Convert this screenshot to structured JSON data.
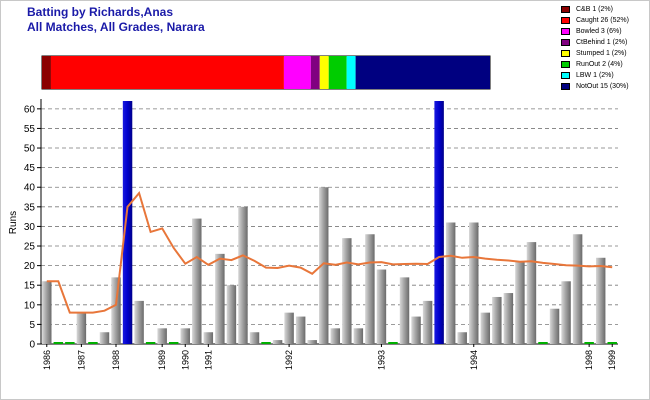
{
  "titles": {
    "line1": "Batting by Richards,Anas",
    "line2": "All Matches, All Grades, Narara"
  },
  "legend": [
    {
      "label": "C&B 1 (2%)",
      "color": "#8b0000"
    },
    {
      "label": "Caught 26 (52%)",
      "color": "#ff0000"
    },
    {
      "label": "Bowled 3 (6%)",
      "color": "#ff00ff"
    },
    {
      "label": "CtBehind 1 (2%)",
      "color": "#800080"
    },
    {
      "label": "Stumped 1 (2%)",
      "color": "#ffff00"
    },
    {
      "label": "RunOut 2 (4%)",
      "color": "#00cc00"
    },
    {
      "label": "LBW 1 (2%)",
      "color": "#00ffff"
    },
    {
      "label": "NotOut 15 (30%)",
      "color": "#000080"
    }
  ],
  "chart_data": {
    "type": "bar",
    "ylabel": "Runs",
    "ylim": [
      0,
      62
    ],
    "yticks": [
      0,
      5,
      10,
      15,
      20,
      25,
      30,
      35,
      40,
      45,
      50,
      55,
      60
    ],
    "grid": true,
    "dismissal_bar": {
      "segments": [
        {
          "name": "C&B",
          "count": 1
        },
        {
          "name": "Caught",
          "count": 26
        },
        {
          "name": "Bowled",
          "count": 3
        },
        {
          "name": "CtBehind",
          "count": 1
        },
        {
          "name": "Stumped",
          "count": 1
        },
        {
          "name": "RunOut",
          "count": 2
        },
        {
          "name": "LBW",
          "count": 1
        },
        {
          "name": "NotOut",
          "count": 15
        }
      ]
    },
    "innings_runs": [
      16,
      0,
      0,
      8,
      0,
      3,
      17,
      62,
      11,
      0,
      4,
      0,
      4,
      32,
      3,
      23,
      15,
      35,
      3,
      0,
      1,
      8,
      7,
      1,
      40,
      4,
      27,
      4,
      28,
      19,
      0,
      17,
      7,
      11,
      62,
      31,
      3,
      31,
      8,
      12,
      13,
      21,
      26,
      0,
      9,
      16,
      28,
      0,
      22,
      0
    ],
    "highlight_innings": [
      7,
      34
    ],
    "running_average": [
      16,
      16,
      8,
      8,
      8,
      8.5,
      10,
      35,
      38.5,
      28.6,
      29.5,
      24.5,
      20.5,
      22.2,
      20.2,
      21.8,
      21.4,
      22.6,
      21.2,
      19.5,
      19.4,
      20,
      19.5,
      17.9,
      20.6,
      20.2,
      20.8,
      20.3,
      20.8,
      20.9,
      20.3,
      20.4,
      20.5,
      20.4,
      22.2,
      22.5,
      22,
      22.2,
      21.8,
      21.5,
      21.3,
      21,
      21.1,
      20.7,
      20.4,
      20.1,
      20,
      19.8,
      19.9,
      19.6
    ],
    "x_tick_labels": [
      {
        "label": "1986",
        "index": 0
      },
      {
        "label": "1987",
        "index": 3
      },
      {
        "label": "1988",
        "index": 6
      },
      {
        "label": "1989",
        "index": 10
      },
      {
        "label": "1990",
        "index": 12
      },
      {
        "label": "1991",
        "index": 14
      },
      {
        "label": "1992",
        "index": 21
      },
      {
        "label": "1993",
        "index": 29
      },
      {
        "label": "1994",
        "index": 37
      },
      {
        "label": "1998",
        "index": 47
      },
      {
        "label": "1999",
        "index": 49
      }
    ],
    "colors": {
      "bar": "#a0a0a0",
      "highlight_bar": "#0000cc",
      "average_line": "#e8763a",
      "zero_marker": "#00b000"
    }
  }
}
